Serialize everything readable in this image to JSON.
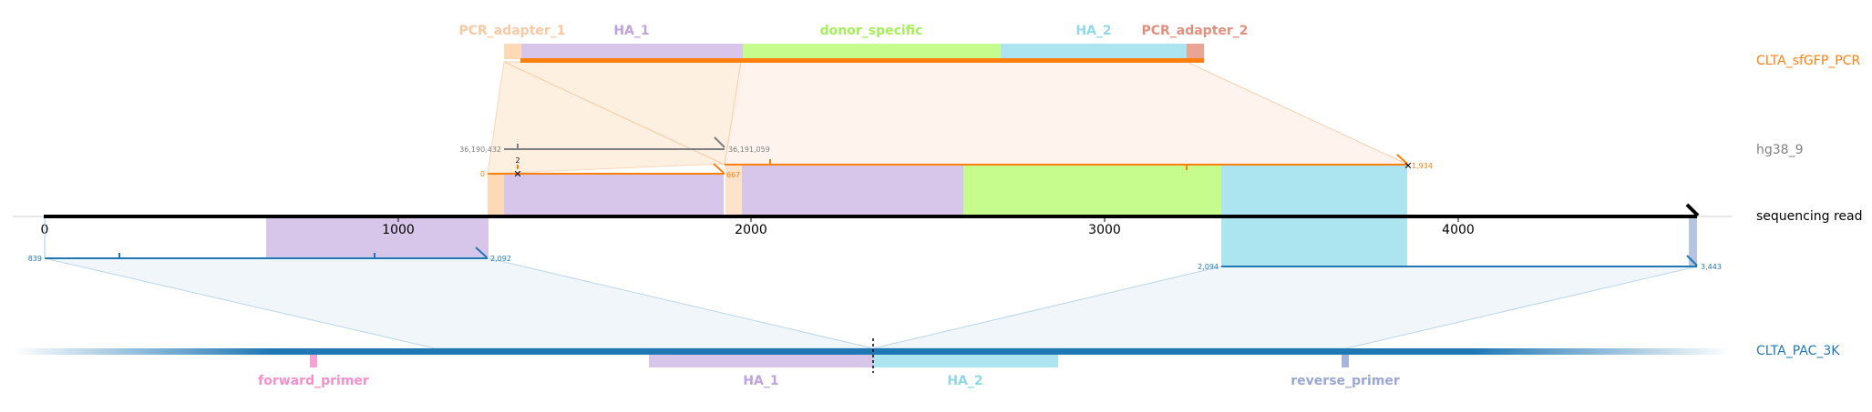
{
  "colors": {
    "pcr_adapter_1": "#fdd9b5",
    "pcr_adapter_1_text": "#f7c9a2",
    "ha_1": "#d7c5ea",
    "ha_1_text": "#bfa2df",
    "donor_specific": "#c6fb8e",
    "donor_specific_text": "#a6ee5a",
    "ha_2": "#ace4ef",
    "ha_2_text": "#8ed8ea",
    "pcr_adapter_2": "#e9a593",
    "pcr_adapter_2_text": "#e28f7d",
    "orange": "#ff7f0e",
    "blue": "#1f77b4",
    "gray": "#7f7f7f",
    "forward_primer": "#f5a3d3",
    "forward_primer_text": "#f58fca",
    "reverse_primer": "#a9b4dc",
    "reverse_primer_text": "#9aa7d4"
  },
  "track_labels": {
    "pcr": "CLTA_sfGFP_PCR",
    "hg38": "hg38_9",
    "read": "sequencing read",
    "pac": "CLTA_PAC_3K"
  },
  "top_features": {
    "pcr_adapter_1": "PCR_adapter_1",
    "ha_1": "HA_1",
    "donor_specific": "donor_specific",
    "ha_2": "HA_2",
    "pcr_adapter_2": "PCR_adapter_2"
  },
  "bottom_features": {
    "forward_primer": "forward_primer",
    "ha_1": "HA_1",
    "ha_2": "HA_2",
    "reverse_primer": "reverse_primer"
  },
  "axis": {
    "ticks": [
      "0",
      "1000",
      "2000",
      "3000",
      "4000"
    ]
  },
  "alignment_labels": {
    "hg38_start": "36,190,432",
    "hg38_end": "36,191,059",
    "hg38_indel": "2",
    "pcr_first_start": "0",
    "pcr_first_end": "667",
    "pcr_second_end": "1,934",
    "pac_first_start": "839",
    "pac_first_end": "2,092",
    "pac_second_start": "2,094",
    "pac_second_end": "3,443"
  }
}
